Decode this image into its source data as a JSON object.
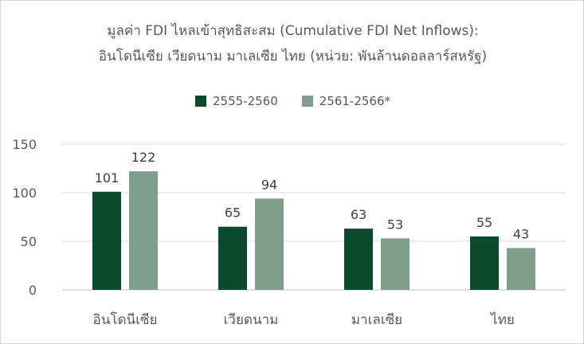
{
  "chart_data": {
    "type": "bar",
    "title_line1": "มูลค่า FDI ไหลเข้าสุทธิสะสม (Cumulative FDI Net Inflows):",
    "title_line2": "อินโดนีเซีย เวียดนาม มาเลเซีย ไทย (หน่วย: พันล้านดอลลาร์สหรัฐ)",
    "categories": [
      "อินโดนีเซีย",
      "เวียดนาม",
      "มาเลเซีย",
      "ไทย"
    ],
    "series": [
      {
        "name": "2555-2560",
        "values": [
          101,
          65,
          63,
          55
        ],
        "color": "#0b4a2c"
      },
      {
        "name": "2561-2566*",
        "values": [
          122,
          94,
          53,
          43
        ],
        "color": "#7f9f8c"
      }
    ],
    "ylim": [
      0,
      150
    ],
    "yticks": [
      0,
      50,
      100,
      150
    ],
    "grid": true,
    "legend_position": "top-center"
  }
}
